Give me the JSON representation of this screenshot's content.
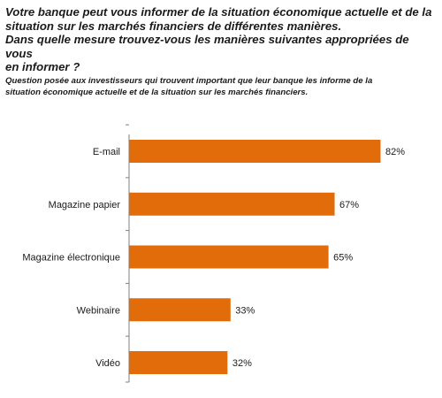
{
  "header": {
    "title_line1": "Votre banque peut vous informer de la situation économique actuelle et de la",
    "title_line2": "situation sur les marchés financiers de différentes manières.",
    "title_line3": "Dans quelle mesure trouvez-vous les manières suivantes appropriées de vous",
    "title_line4": "en informer ?",
    "subtitle_line1": "Question posée aux investisseurs qui trouvent important que leur banque les informe de la",
    "subtitle_line2": "situation économique actuelle et de la situation sur les marchés financiers."
  },
  "colors": {
    "bar": "#E36C0A",
    "axis": "#7f7f7f"
  },
  "chart_data": {
    "type": "bar",
    "orientation": "horizontal",
    "categories": [
      "E-mail",
      "Magazine papier",
      "Magazine électronique",
      "Webinaire",
      "Vidéo"
    ],
    "values": [
      82,
      67,
      65,
      33,
      32
    ],
    "value_labels": [
      "82%",
      "67%",
      "65%",
      "33%",
      "32%"
    ],
    "unit": "%",
    "xlim": [
      0,
      100
    ],
    "grid": false,
    "legend": "none"
  }
}
